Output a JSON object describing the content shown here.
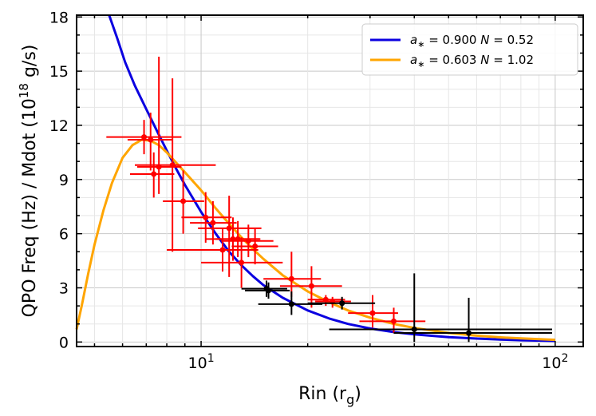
{
  "chart_data": {
    "type": "scatter",
    "xlabel": "Rin (r",
    "xlabel_sub": "g",
    "xlabel_close": ")",
    "ylabel": "QPO Freq (Hz) / Mdot (10",
    "ylabel_sup": "18",
    "ylabel_close": " g/s)",
    "xscale": "log",
    "xlim": [
      4.45,
      120
    ],
    "ylim": [
      -0.25,
      18.1
    ],
    "grid": true,
    "legend_position": "top-right",
    "x_ticks": [
      {
        "value": 10,
        "base": "10",
        "exp": "1"
      },
      {
        "value": 100,
        "base": "10",
        "exp": "2"
      }
    ],
    "y_ticks": [
      0,
      3,
      6,
      9,
      12,
      15,
      18
    ],
    "y_tick_labels": [
      "0",
      "3",
      "6",
      "9",
      "12",
      "15",
      "18"
    ],
    "series": [
      {
        "kind": "curve",
        "name_parts": [
          "a",
          "∗",
          " = 0.900  ",
          "N",
          " = 0.52"
        ],
        "color": "#0b00e0",
        "x": [
          5.5,
          5.8,
          6.1,
          6.5,
          7.0,
          7.5,
          8.0,
          8.5,
          9.0,
          10.0,
          11.0,
          12.0,
          13.0,
          14.0,
          15.0,
          17.0,
          20.0,
          23.0,
          26.0,
          30.0,
          35.0,
          40.0,
          50.0,
          60.0,
          70.0,
          80.0,
          100.0
        ],
        "y": [
          18.1,
          16.8,
          15.5,
          14.2,
          12.9,
          11.7,
          10.6,
          9.6,
          8.7,
          7.2,
          6.0,
          5.0,
          4.25,
          3.65,
          3.15,
          2.45,
          1.75,
          1.3,
          1.0,
          0.75,
          0.55,
          0.42,
          0.27,
          0.19,
          0.14,
          0.1,
          0.06
        ]
      },
      {
        "kind": "curve",
        "name_parts": [
          "a",
          "∗",
          " = 0.603  ",
          "N",
          " = 1.02"
        ],
        "color": "#ffa500",
        "x": [
          4.45,
          4.6,
          4.8,
          5.0,
          5.3,
          5.6,
          6.0,
          6.4,
          6.8,
          7.2,
          7.6,
          8.0,
          9.0,
          10.0,
          11.0,
          12.0,
          13.0,
          14.0,
          15.0,
          17.0,
          20.0,
          23.0,
          26.0,
          30.0,
          35.0,
          40.0,
          50.0,
          60.0,
          70.0,
          80.0,
          100.0
        ],
        "y": [
          0.7,
          2.0,
          3.8,
          5.4,
          7.3,
          8.8,
          10.2,
          10.9,
          11.2,
          11.15,
          10.9,
          10.5,
          9.4,
          8.4,
          7.4,
          6.55,
          5.8,
          5.15,
          4.6,
          3.7,
          2.8,
          2.2,
          1.75,
          1.35,
          1.0,
          0.78,
          0.5,
          0.35,
          0.26,
          0.2,
          0.12
        ]
      },
      {
        "kind": "points",
        "color": "#ff0000",
        "points": [
          {
            "x": 6.9,
            "y": 11.35,
            "xl": 5.4,
            "xh": 8.8,
            "yl": 10.4,
            "yh": 12.3
          },
          {
            "x": 7.2,
            "y": 11.2,
            "xl": 6.2,
            "xh": 8.3,
            "yl": 9.5,
            "yh": 12.7
          },
          {
            "x": 7.35,
            "y": 9.3,
            "xl": 6.3,
            "xh": 8.4,
            "yl": 8.0,
            "yh": 10.5
          },
          {
            "x": 7.6,
            "y": 9.7,
            "xl": 6.6,
            "xh": 8.8,
            "yl": 8.2,
            "yh": 15.8
          },
          {
            "x": 8.3,
            "y": 9.8,
            "xl": 6.5,
            "xh": 11.0,
            "yl": 5.0,
            "yh": 14.6
          },
          {
            "x": 8.9,
            "y": 7.8,
            "xl": 7.8,
            "xh": 10.2,
            "yl": 6.0,
            "yh": 9.5
          },
          {
            "x": 10.3,
            "y": 6.9,
            "xl": 8.8,
            "xh": 12.2,
            "yl": 5.5,
            "yh": 8.3
          },
          {
            "x": 10.8,
            "y": 6.6,
            "xl": 9.3,
            "xh": 12.6,
            "yl": 5.4,
            "yh": 7.8
          },
          {
            "x": 11.5,
            "y": 5.1,
            "xl": 8.0,
            "xh": 14.5,
            "yl": 3.9,
            "yh": 6.3
          },
          {
            "x": 12.0,
            "y": 6.3,
            "xl": 9.8,
            "xh": 14.8,
            "yl": 3.6,
            "yh": 8.1
          },
          {
            "x": 12.3,
            "y": 5.7,
            "xl": 10.3,
            "xh": 14.7,
            "yl": 4.5,
            "yh": 6.9
          },
          {
            "x": 12.7,
            "y": 5.7,
            "xl": 11.0,
            "xh": 14.6,
            "yl": 4.7,
            "yh": 6.7
          },
          {
            "x": 13.0,
            "y": 4.4,
            "xl": 10.0,
            "xh": 17.0,
            "yl": 3.0,
            "yh": 5.8
          },
          {
            "x": 13.6,
            "y": 5.6,
            "xl": 11.4,
            "xh": 16.0,
            "yl": 4.7,
            "yh": 6.5
          },
          {
            "x": 14.2,
            "y": 5.3,
            "xl": 12.2,
            "xh": 16.5,
            "yl": 4.3,
            "yh": 6.3
          },
          {
            "x": 18.0,
            "y": 3.5,
            "xl": 15.0,
            "xh": 21.8,
            "yl": 2.5,
            "yh": 5.0
          },
          {
            "x": 20.5,
            "y": 3.1,
            "xl": 16.7,
            "xh": 25.0,
            "yl": 1.9,
            "yh": 4.2
          },
          {
            "x": 22.5,
            "y": 2.35,
            "xl": 20.0,
            "xh": 25.5,
            "yl": 2.0,
            "yh": 2.6
          },
          {
            "x": 23.5,
            "y": 2.25,
            "xl": 21.0,
            "xh": 26.5,
            "yl": 1.9,
            "yh": 2.5
          },
          {
            "x": 30.5,
            "y": 1.6,
            "xl": 26.0,
            "xh": 36.0,
            "yl": 0.8,
            "yh": 2.6
          },
          {
            "x": 35.0,
            "y": 1.15,
            "xl": 28.0,
            "xh": 43.0,
            "yl": 0.5,
            "yh": 1.9
          }
        ]
      },
      {
        "kind": "points",
        "color": "#000000",
        "points": [
          {
            "x": 15.3,
            "y": 2.95,
            "xl": 13.0,
            "xh": 17.5,
            "yl": 2.5,
            "yh": 3.4
          },
          {
            "x": 15.5,
            "y": 2.85,
            "xl": 13.3,
            "xh": 17.8,
            "yl": 2.4,
            "yh": 3.3
          },
          {
            "x": 18.0,
            "y": 2.1,
            "xl": 14.5,
            "xh": 22.0,
            "yl": 1.5,
            "yh": 2.8
          },
          {
            "x": 25.0,
            "y": 2.15,
            "xl": 20.0,
            "xh": 31.0,
            "yl": 1.8,
            "yh": 2.5
          },
          {
            "x": 40.0,
            "y": 0.7,
            "xl": 23.0,
            "xh": 98.0,
            "yl": 0.0,
            "yh": 3.8
          },
          {
            "x": 57.0,
            "y": 0.5,
            "xl": 35.0,
            "xh": 98.0,
            "yl": 0.0,
            "yh": 2.45
          }
        ]
      }
    ]
  }
}
